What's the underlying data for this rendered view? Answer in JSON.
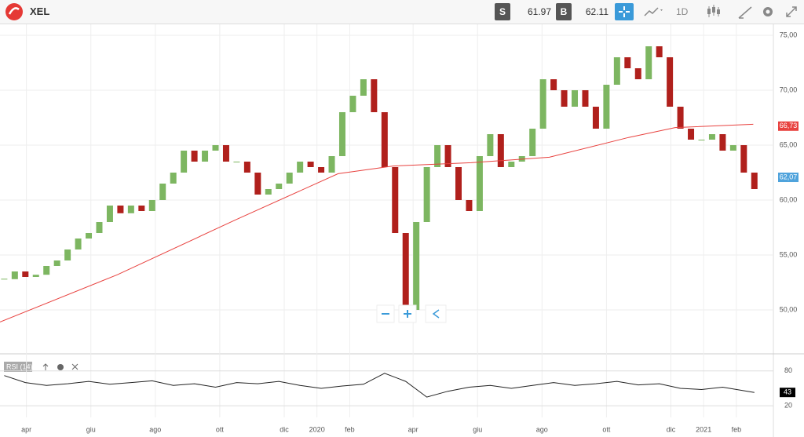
{
  "header": {
    "symbol": "XEL",
    "sell_label": "S",
    "sell": "61.97",
    "buy_label": "B",
    "buy": "62.11",
    "interval": "1D"
  },
  "chart_data": [
    {
      "type": "candlestick",
      "x": [
        10,
        20,
        30,
        40,
        50,
        60,
        70,
        80,
        90,
        100,
        110,
        120,
        130,
        140,
        150,
        160,
        170,
        180,
        190,
        200,
        210,
        220,
        230,
        240,
        250,
        260,
        270,
        280,
        290,
        300,
        310,
        320,
        330,
        340,
        350,
        360,
        370,
        380,
        390,
        400,
        410,
        420,
        430,
        440,
        450,
        460,
        470,
        480,
        490,
        500,
        510,
        520,
        530,
        540,
        550,
        560,
        570,
        580,
        590,
        600,
        610,
        620,
        630,
        640,
        650,
        660,
        670,
        680,
        690,
        700,
        710,
        720
      ],
      "values": [
        52.8,
        53.5,
        53,
        53.2,
        54,
        54.5,
        55.5,
        56.5,
        57,
        58,
        59.5,
        58.8,
        59.5,
        59,
        60,
        61.5,
        62.5,
        64.5,
        63.5,
        64.5,
        65,
        63.5,
        63.5,
        62.5,
        60.5,
        61,
        61.5,
        62.5,
        63.5,
        63,
        62.5,
        64,
        68,
        69.5,
        71,
        68,
        63,
        57,
        50,
        58,
        63,
        65,
        63,
        60,
        59,
        64,
        66,
        63,
        63.5,
        64,
        66.5,
        71,
        70,
        68.5,
        70,
        68.5,
        66.5,
        70.5,
        73,
        72,
        71,
        74,
        73,
        68.5,
        66.5,
        65.5,
        65.5,
        66,
        64.5,
        65,
        62.5,
        61
      ],
      "color_up": "#7db661",
      "color_down": "#b0201c",
      "ma": {
        "x": [
          6,
          117,
          229,
          326,
          378,
          452,
          526,
          601,
          645,
          719
        ],
        "values": [
          48.9,
          53.2,
          58.2,
          62.4,
          63.1,
          63.4,
          63.9,
          65.7,
          66.6,
          66.9
        ],
        "color": "#e8423f"
      },
      "ma_last": {
        "value": 66.73,
        "label": "66,73"
      },
      "last_price": {
        "value": 62.07,
        "label": "62,07"
      },
      "last_color": "#4fa3dc",
      "xlim": [
        6,
        738
      ],
      "ylim": [
        46,
        76
      ],
      "yticks": [
        {
          "value": 50,
          "label": "50,00"
        },
        {
          "value": 55,
          "label": "55,00"
        },
        {
          "value": 60,
          "label": "60,00"
        },
        {
          "value": 65,
          "label": "65,00"
        },
        {
          "value": 70,
          "label": "70,00"
        },
        {
          "value": 75,
          "label": "75,00"
        }
      ],
      "xticks": [
        {
          "value": 31,
          "label": "apr"
        },
        {
          "value": 92,
          "label": "giu"
        },
        {
          "value": 153,
          "label": "ago"
        },
        {
          "value": 214,
          "label": "ott"
        },
        {
          "value": 275,
          "label": "dic"
        },
        {
          "value": 306,
          "label": "2020"
        },
        {
          "value": 337,
          "label": "feb"
        },
        {
          "value": 397,
          "label": "apr"
        },
        {
          "value": 458,
          "label": "giu"
        },
        {
          "value": 519,
          "label": "ago"
        },
        {
          "value": 580,
          "label": "ott"
        },
        {
          "value": 641,
          "label": "dic"
        },
        {
          "value": 672,
          "label": "2021"
        },
        {
          "value": 703,
          "label": "feb"
        }
      ],
      "grid": true
    },
    {
      "type": "line",
      "title": "RSI (14)",
      "x": [
        10,
        30,
        50,
        70,
        90,
        110,
        130,
        150,
        170,
        190,
        210,
        230,
        250,
        270,
        290,
        310,
        330,
        350,
        370,
        390,
        410,
        430,
        450,
        470,
        490,
        510,
        530,
        550,
        570,
        590,
        610,
        630,
        650,
        670,
        690,
        710,
        720
      ],
      "values": [
        72,
        60,
        55,
        58,
        62,
        57,
        60,
        63,
        55,
        58,
        52,
        60,
        58,
        62,
        55,
        50,
        54,
        57,
        76,
        62,
        35,
        45,
        52,
        55,
        50,
        55,
        60,
        55,
        58,
        62,
        56,
        58,
        50,
        48,
        52,
        46,
        43
      ],
      "color": "#222",
      "xlim": [
        6,
        738
      ],
      "ylim": [
        0,
        100
      ],
      "yticks": [
        20,
        80
      ],
      "last": 43,
      "grid": true
    }
  ]
}
